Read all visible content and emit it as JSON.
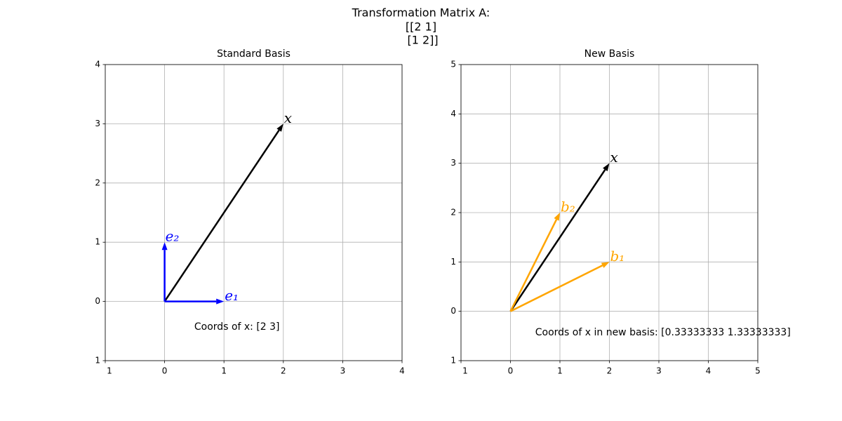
{
  "title": [
    "Transformation Matrix A:",
    "[[2 1]",
    " [1 2]]"
  ],
  "chart_data": [
    {
      "type": "vector",
      "title": "Standard Basis",
      "xlim": [
        -1,
        4
      ],
      "ylim": [
        -1,
        4
      ],
      "xticks": [
        {
          "value": -1,
          "label": "1"
        },
        0,
        1,
        2,
        3,
        4
      ],
      "yticks": [
        {
          "value": -1,
          "label": "1"
        },
        0,
        1,
        2,
        3,
        4
      ],
      "grid": true,
      "vectors": [
        {
          "label": "x",
          "color": "#000000",
          "values": [
            2,
            3
          ]
        },
        {
          "label": "e₁",
          "color": "#0000ff",
          "values": [
            1,
            0
          ]
        },
        {
          "label": "e₂",
          "color": "#0000ff",
          "values": [
            0,
            1
          ]
        }
      ],
      "annotation": "Coords of x: [2 3]"
    },
    {
      "type": "vector",
      "title": "New Basis",
      "xlim": [
        -1,
        5
      ],
      "ylim": [
        -1,
        5
      ],
      "xticks": [
        {
          "value": -1,
          "label": "1"
        },
        0,
        1,
        2,
        3,
        4,
        5
      ],
      "yticks": [
        {
          "value": -1,
          "label": "1"
        },
        0,
        1,
        2,
        3,
        4,
        5
      ],
      "grid": true,
      "vectors": [
        {
          "label": "x",
          "color": "#000000",
          "values": [
            2,
            3
          ]
        },
        {
          "label": "b₁",
          "color": "#ffa500",
          "values": [
            2,
            1
          ]
        },
        {
          "label": "b₂",
          "color": "#ffa500",
          "values": [
            1,
            2
          ]
        }
      ],
      "annotation": "Coords of x in new basis: [0.33333333 1.33333333]"
    }
  ]
}
